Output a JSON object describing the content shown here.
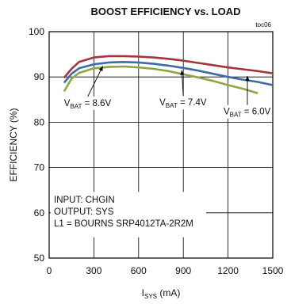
{
  "chart_data": {
    "type": "line",
    "title": "BOOST EFFICIENCY vs. LOAD",
    "figure_tag": "toc06",
    "xlabel": "I",
    "xlabel_sub": "SYS",
    "xlabel_unit": " (mA)",
    "ylabel": "EFFICIENCY (%)",
    "xlim": [
      0,
      1500
    ],
    "ylim": [
      50,
      100
    ],
    "xticks": [
      0,
      300,
      600,
      900,
      1200,
      1500
    ],
    "yticks": [
      50,
      60,
      70,
      80,
      90,
      100
    ],
    "grid": true,
    "notes": [
      "INPUT: CHGIN",
      "OUTPUT: SYS",
      "L1 = BOURNS SRP4012TA-2R2M"
    ],
    "series": [
      {
        "name": "V",
        "name_sub": "BAT",
        "name_value": " = 8.6V",
        "color": "#a3343c",
        "x": [
          100,
          150,
          200,
          300,
          400,
          500,
          600,
          700,
          800,
          900,
          1000,
          1100,
          1200,
          1300,
          1400,
          1500
        ],
        "y": [
          89.8,
          91.8,
          93.3,
          94.3,
          94.6,
          94.6,
          94.5,
          94.3,
          94.0,
          93.6,
          93.1,
          92.6,
          92.1,
          91.7,
          91.3,
          90.8
        ]
      },
      {
        "name": "V",
        "name_sub": "BAT",
        "name_value": " = 7.4V",
        "color": "#3f6aa8",
        "x": [
          100,
          150,
          200,
          300,
          400,
          500,
          600,
          700,
          800,
          900,
          1000,
          1100,
          1200,
          1300,
          1400,
          1500
        ],
        "y": [
          88.7,
          90.7,
          91.9,
          92.8,
          93.2,
          93.3,
          93.2,
          92.9,
          92.5,
          92.0,
          91.4,
          90.7,
          90.0,
          89.4,
          88.9,
          88.2
        ]
      },
      {
        "name": "V",
        "name_sub": "BAT",
        "name_value": " = 6.0V",
        "color": "#8ba845",
        "x": [
          100,
          150,
          200,
          300,
          400,
          500,
          600,
          700,
          800,
          900,
          1000,
          1100,
          1200,
          1300,
          1400
        ],
        "y": [
          86.8,
          89.6,
          90.9,
          91.9,
          92.2,
          92.3,
          92.1,
          91.8,
          91.3,
          90.6,
          89.9,
          89.1,
          88.2,
          87.4,
          86.4
        ]
      }
    ],
    "annotations": [
      {
        "series": 0,
        "text": "V",
        "sub": "BAT",
        "suffix": " = 8.6V",
        "at_x": 100,
        "at_y": 83.6,
        "arrow_to_x": 360,
        "arrow_to_y": 92.4
      },
      {
        "series": 1,
        "text": "V",
        "sub": "BAT",
        "suffix": " = 7.4V",
        "at_x": 740,
        "at_y": 83.7,
        "arrow_to_x": 890,
        "arrow_to_y": 91.5
      },
      {
        "series": 2,
        "text": "V",
        "sub": "BAT",
        "suffix": " = 6.0V",
        "at_x": 1170,
        "at_y": 81.7,
        "arrow_to_x": 1330,
        "arrow_to_y": 90.2
      }
    ]
  }
}
